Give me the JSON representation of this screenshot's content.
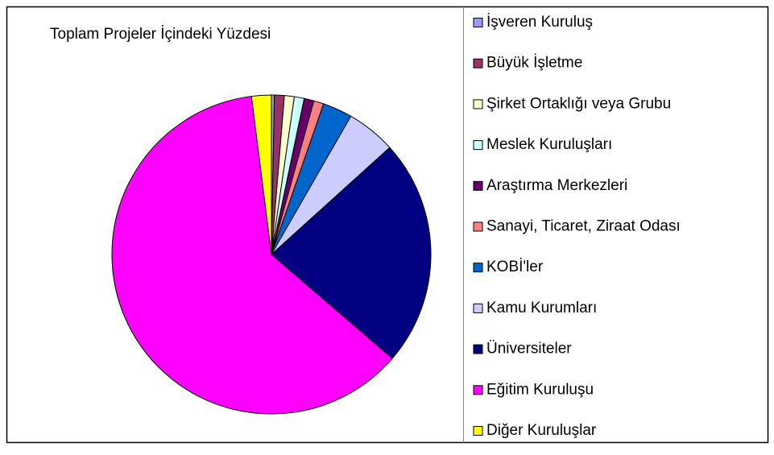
{
  "chart_data": {
    "type": "pie",
    "title": "Toplam Projeler İçindeki Yüzdesi",
    "categories": [
      "İşveren Kuruluş",
      "Büyük İşletme",
      "Şirket Ortaklığı veya Grubu",
      "Meslek Kuruluşları",
      "Araştırma Merkezleri",
      "Sanayi, Ticaret, Ziraat Odası",
      "KOBİ'ler",
      "Kamu Kurumları",
      "Üniversiteler",
      "Eğitim Kuruluşu",
      "Diğer Kuruluşlar"
    ],
    "values": [
      0.3,
      1,
      1,
      1,
      1,
      1,
      3,
      5,
      23,
      61.7,
      2
    ],
    "colors": [
      "#9999ff",
      "#993366",
      "#ffffcc",
      "#ccffff",
      "#660066",
      "#ff8080",
      "#0066cc",
      "#ccccff",
      "#000080",
      "#ff00ff",
      "#ffff00"
    ],
    "legend": "right"
  }
}
